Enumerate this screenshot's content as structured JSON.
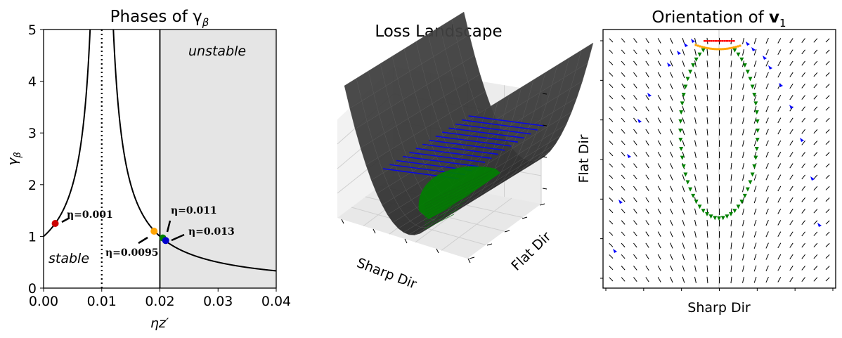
{
  "chart_data": [
    {
      "type": "line",
      "title": "Phases of γ",
      "title_subscript": "β",
      "xlabel": "ηz′",
      "ylabel": "γ",
      "ylabel_subscript": "β",
      "xlim": [
        0,
        0.04
      ],
      "ylim": [
        0,
        5
      ],
      "xticks": [
        "0.00",
        "0.01",
        "0.02",
        "0.03",
        "0.04"
      ],
      "yticks": [
        "0",
        "1",
        "2",
        "3",
        "4",
        "5"
      ],
      "curve": {
        "formula": "1/|1-100x|",
        "color": "#000000"
      },
      "vline_dotted": 0.01,
      "vline_solid": 0.02,
      "unstable_shading_from": 0.02,
      "region_labels": {
        "unstable": "unstable",
        "stable": "stable"
      },
      "points": [
        {
          "label": "η=0.001",
          "x": 0.002,
          "y": 1.25,
          "color": "#cc0000"
        },
        {
          "label": "η=0.0095",
          "x": 0.019,
          "y": 1.1,
          "color": "#ffa500"
        },
        {
          "label": "η=0.011",
          "x": 0.0205,
          "y": 0.97,
          "color": "#008000"
        },
        {
          "label": "η=0.013",
          "x": 0.021,
          "y": 0.92,
          "color": "#0000cc"
        }
      ]
    },
    {
      "type": "surface3d",
      "title": "Loss Landscape",
      "xlabel": "Sharp Dir",
      "ylabel": "Flat Dir",
      "surface_color": "#333333",
      "trajectories": [
        {
          "color": "#0000ff"
        },
        {
          "color": "#008000"
        }
      ]
    },
    {
      "type": "quiver",
      "title": "Orientation of ",
      "title_bold_symbol": "v",
      "title_subscript": "1",
      "xlabel": "Sharp Dir",
      "ylabel": "Flat Dir",
      "trajectory_colors": [
        "#ff0000",
        "#ffa500",
        "#008000",
        "#0000ff"
      ]
    }
  ]
}
